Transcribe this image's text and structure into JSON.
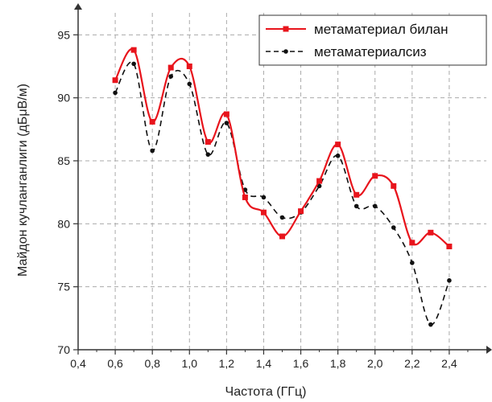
{
  "chart_data": {
    "type": "line",
    "xlabel": "Частота (ГГц)",
    "ylabel": "Майдон кучланганлиги (дБμВ/м)",
    "xlim": [
      0.4,
      2.6
    ],
    "ylim": [
      70,
      97
    ],
    "x_ticks": [
      "0,4",
      "0,6",
      "0,8",
      "1,0",
      "1,2",
      "1,4",
      "1,6",
      "1,8",
      "2,0",
      "2,2",
      "2,4"
    ],
    "y_ticks": [
      "70",
      "75",
      "80",
      "85",
      "90",
      "95"
    ],
    "x": [
      0.6,
      0.7,
      0.8,
      0.9,
      1.0,
      1.1,
      1.2,
      1.3,
      1.4,
      1.5,
      1.6,
      1.7,
      1.8,
      1.9,
      2.0,
      2.1,
      2.2,
      2.3,
      2.4
    ],
    "series": [
      {
        "name": "метаматериал билан",
        "color": "#e8141c",
        "style": "solid",
        "marker": "square",
        "values": [
          91.4,
          93.8,
          88.1,
          92.4,
          92.5,
          86.5,
          88.7,
          82.1,
          80.9,
          79.0,
          81.0,
          83.4,
          86.3,
          82.3,
          83.8,
          83.0,
          78.5,
          79.3,
          78.2
        ]
      },
      {
        "name": "метаматериалсиз",
        "color": "#111111",
        "style": "dashed",
        "marker": "dot",
        "values": [
          90.4,
          92.7,
          85.8,
          91.7,
          91.1,
          85.5,
          88.0,
          82.7,
          82.1,
          80.5,
          80.9,
          83.0,
          85.4,
          81.4,
          81.4,
          79.7,
          76.9,
          72.0,
          75.5
        ]
      }
    ],
    "grid": true,
    "legend_position": "top-right"
  }
}
